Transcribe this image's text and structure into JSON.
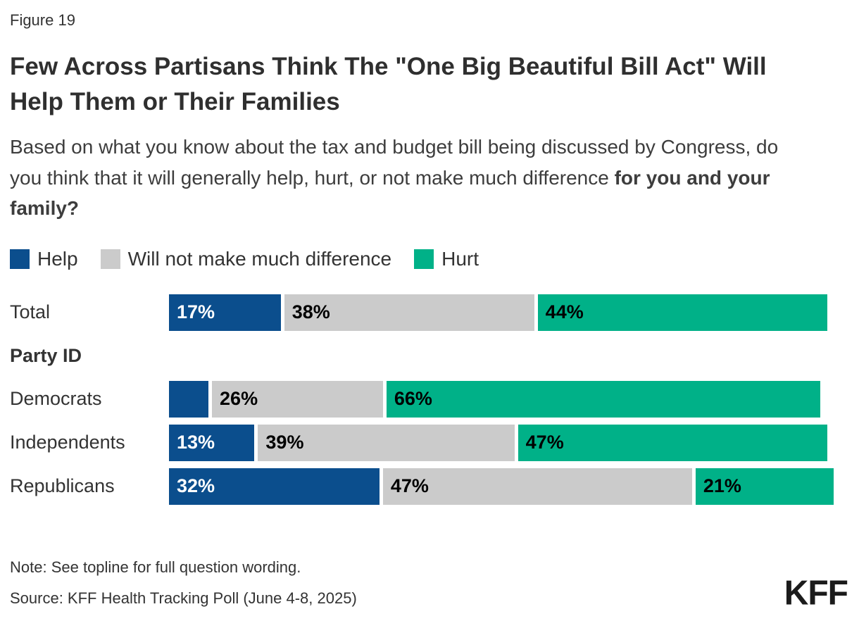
{
  "figure_label": "Figure 19",
  "title": "Few Across Partisans Think The \"One Big Beautiful Bill Act\" Will Help Them or Their Families",
  "question": {
    "regular": "Based on what you know about the tax and budget bill being discussed by Congress, do you think that it will generally help, hurt, or not make much difference ",
    "bold": "for you and your family?"
  },
  "legend": {
    "items": [
      {
        "label": "Help",
        "color": "#0B4E8D"
      },
      {
        "label": "Will not make much difference",
        "color": "#CBCBCB"
      },
      {
        "label": "Hurt",
        "color": "#00B188"
      }
    ]
  },
  "section_heading": "Party ID",
  "chart_data": {
    "type": "bar",
    "orientation": "horizontal",
    "stacked": true,
    "unit": "percent",
    "x_max": 100,
    "grid": false,
    "legend_position": "top",
    "value_labels": "inside-left",
    "categories": [
      "Total",
      "Democrats",
      "Independents",
      "Republicans"
    ],
    "series": [
      {
        "name": "Help",
        "color": "#0B4E8D",
        "label_color": "#FFFFFF",
        "values": [
          17,
          6,
          13,
          32
        ],
        "labels": [
          "17%",
          "",
          "13%",
          "32%"
        ]
      },
      {
        "name": "Will not make much difference",
        "color": "#CBCBCB",
        "label_color": "#000000",
        "values": [
          38,
          26,
          39,
          47
        ],
        "labels": [
          "38%",
          "26%",
          "39%",
          "47%"
        ]
      },
      {
        "name": "Hurt",
        "color": "#00B188",
        "label_color": "#000000",
        "values": [
          44,
          66,
          47,
          21
        ],
        "labels": [
          "44%",
          "66%",
          "47%",
          "21%"
        ]
      }
    ]
  },
  "note": "Note: See topline for full question wording.",
  "source": "Source: KFF Health Tracking Poll (June 4-8, 2025)",
  "logo_text": "KFF"
}
